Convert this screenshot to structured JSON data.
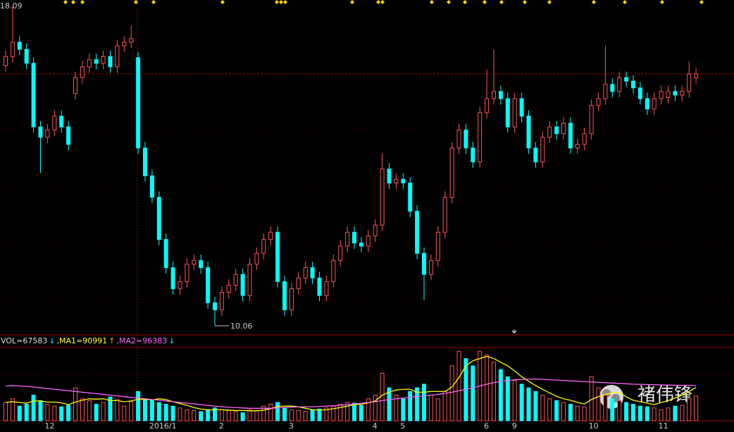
{
  "chart_data": {
    "type": "candlestick",
    "categories": [
      null,
      null,
      null,
      null,
      null,
      null,
      "12",
      null,
      null,
      null,
      null,
      null,
      null,
      null,
      null,
      null,
      null,
      null,
      null,
      null,
      null,
      "2016/1",
      null,
      null,
      null,
      null,
      null,
      null,
      null,
      null,
      null,
      "2",
      null,
      null,
      null,
      null,
      null,
      null,
      null,
      null,
      null,
      "3",
      null,
      null,
      null,
      null,
      null,
      null,
      null,
      null,
      null,
      null,
      null,
      "4",
      null,
      null,
      null,
      "5",
      null,
      null,
      null,
      null,
      null,
      null,
      null,
      null,
      null,
      null,
      null,
      "6",
      null,
      null,
      null,
      "9",
      null,
      null,
      null,
      null,
      null,
      null,
      null,
      null,
      null,
      null,
      "10",
      null,
      null,
      null,
      null,
      null,
      null,
      null,
      null,
      null,
      "11",
      null,
      null,
      null,
      null,
      null
    ],
    "open": [
      16.6,
      16.83,
      17.19,
      17.01,
      16.66,
      15.06,
      14.8,
      14.98,
      15.33,
      15.06,
      15.9,
      16.3,
      16.57,
      16.75,
      16.66,
      16.83,
      16.57,
      17.1,
      17.19,
      16.8,
      14.53,
      13.83,
      13.29,
      12.23,
      11.52,
      10.99,
      11.17,
      11.61,
      11.7,
      11.52,
      10.64,
      10.46,
      10.9,
      11.08,
      11.35,
      10.82,
      11.61,
      11.88,
      12.23,
      12.41,
      11.17,
      10.46,
      10.99,
      11.26,
      11.52,
      11.26,
      10.82,
      11.17,
      11.7,
      12.06,
      12.41,
      12.14,
      12.06,
      12.32,
      12.59,
      14.0,
      13.65,
      13.74,
      13.65,
      12.94,
      11.88,
      11.35,
      11.7,
      12.41,
      13.29,
      14.53,
      14.98,
      14.53,
      14.18,
      15.42,
      15.77,
      15.95,
      15.77,
      15.06,
      15.77,
      15.33,
      14.53,
      14.18,
      14.8,
      15.06,
      14.89,
      15.15,
      14.53,
      14.62,
      14.89,
      15.6,
      15.77,
      16.13,
      15.95,
      16.3,
      16.21,
      16.04,
      15.77,
      15.51,
      15.77,
      15.8,
      15.95,
      15.86,
      15.95,
      16.3
    ],
    "high": [
      16.98,
      18.09,
      17.34,
      17.16,
      16.81,
      15.21,
      15.13,
      15.48,
      15.48,
      15.21,
      16.45,
      16.72,
      16.9,
      16.9,
      16.98,
      16.98,
      17.25,
      17.34,
      17.6,
      16.95,
      14.68,
      13.98,
      13.44,
      12.38,
      11.67,
      11.32,
      11.76,
      11.85,
      11.85,
      11.67,
      10.79,
      11.05,
      11.23,
      11.5,
      11.5,
      11.76,
      12.03,
      12.38,
      12.56,
      12.56,
      11.32,
      11.14,
      11.41,
      11.67,
      11.67,
      11.41,
      11.32,
      11.85,
      12.21,
      12.56,
      12.56,
      12.29,
      12.47,
      12.74,
      14.4,
      14.15,
      13.89,
      13.89,
      13.8,
      13.09,
      12.03,
      11.85,
      12.56,
      13.44,
      14.68,
      15.13,
      15.13,
      14.68,
      15.57,
      16.5,
      17.0,
      16.1,
      15.92,
      15.92,
      15.92,
      15.48,
      14.68,
      14.95,
      15.21,
      15.21,
      15.3,
      15.3,
      14.77,
      15.04,
      15.75,
      15.92,
      17.1,
      16.28,
      16.45,
      16.45,
      16.36,
      16.19,
      15.92,
      15.92,
      16.1,
      16.1,
      16.1,
      16.1,
      16.7,
      16.54
    ],
    "low": [
      16.45,
      16.68,
      16.86,
      16.51,
      14.91,
      13.9,
      14.65,
      14.83,
      14.91,
      14.47,
      15.75,
      16.15,
      16.42,
      16.51,
      16.51,
      16.42,
      16.42,
      16.95,
      17.04,
      14.38,
      13.68,
      13.14,
      12.08,
      11.37,
      10.84,
      10.84,
      11.02,
      11.46,
      11.37,
      10.49,
      10.06,
      10.31,
      10.75,
      10.93,
      10.67,
      10.67,
      11.46,
      11.73,
      12.08,
      11.02,
      10.31,
      10.31,
      10.84,
      11.11,
      11.11,
      10.67,
      10.67,
      11.02,
      11.55,
      11.91,
      11.99,
      11.91,
      11.91,
      12.17,
      12.44,
      13.5,
      13.5,
      13.5,
      12.79,
      11.73,
      10.7,
      11.2,
      11.55,
      12.26,
      13.14,
      14.38,
      14.38,
      14.03,
      14.03,
      15.27,
      15.62,
      15.62,
      14.91,
      14.91,
      15.18,
      14.38,
      14.03,
      14.03,
      14.65,
      14.74,
      14.74,
      14.38,
      14.38,
      14.47,
      14.74,
      15.45,
      15.62,
      15.8,
      15.8,
      16.06,
      15.89,
      15.62,
      15.36,
      15.36,
      15.62,
      15.65,
      15.71,
      15.71,
      15.8,
      16.15
    ],
    "close": [
      16.83,
      17.19,
      17.01,
      16.66,
      15.06,
      14.8,
      14.98,
      15.33,
      15.06,
      14.62,
      16.3,
      16.57,
      16.75,
      16.66,
      16.83,
      16.57,
      17.1,
      17.19,
      17.28,
      14.53,
      13.83,
      13.29,
      12.23,
      11.52,
      10.99,
      11.17,
      11.61,
      11.7,
      11.52,
      10.64,
      10.46,
      10.9,
      11.08,
      11.35,
      10.82,
      11.61,
      11.88,
      12.23,
      12.41,
      11.17,
      10.46,
      10.99,
      11.26,
      11.52,
      11.26,
      10.82,
      11.17,
      11.7,
      12.06,
      12.41,
      12.14,
      12.06,
      12.32,
      12.59,
      14.0,
      13.65,
      13.74,
      13.65,
      12.94,
      11.88,
      11.35,
      11.7,
      12.41,
      13.29,
      14.53,
      14.98,
      14.53,
      14.18,
      15.42,
      15.77,
      15.95,
      15.77,
      15.06,
      15.77,
      15.33,
      14.53,
      14.18,
      14.8,
      15.06,
      14.89,
      15.15,
      14.53,
      14.62,
      14.89,
      15.6,
      15.77,
      16.13,
      15.95,
      16.3,
      16.21,
      16.04,
      15.77,
      15.51,
      15.77,
      15.95,
      15.95,
      15.86,
      15.95,
      16.39,
      16.39
    ],
    "ylim": [
      9.9,
      18.25
    ],
    "up_color": "#ff5555",
    "down_color": "#00ffff",
    "volume": {
      "ylim": [
        0,
        200000
      ],
      "values": [
        50000,
        60000,
        40000,
        45000,
        70000,
        55000,
        45000,
        40000,
        38000,
        42000,
        90000,
        60000,
        55000,
        45000,
        50000,
        65000,
        58000,
        40000,
        52000,
        80000,
        60000,
        55000,
        50000,
        45000,
        40000,
        35000,
        30000,
        28000,
        25000,
        30000,
        35000,
        30000,
        28000,
        25000,
        22000,
        30000,
        28000,
        40000,
        45000,
        50000,
        35000,
        30000,
        28000,
        26000,
        30000,
        32000,
        35000,
        40000,
        45000,
        50000,
        48000,
        42000,
        60000,
        70000,
        130000,
        90000,
        70000,
        60000,
        80000,
        90000,
        100000,
        70000,
        60000,
        80000,
        150000,
        190000,
        170000,
        150000,
        190000,
        180000,
        160000,
        140000,
        120000,
        110000,
        100000,
        90000,
        80000,
        70000,
        60000,
        55000,
        50000,
        45000,
        40000,
        38000,
        120000,
        90000,
        70000,
        60000,
        55000,
        50000,
        45000,
        40000,
        38000,
        35000,
        30000,
        35000,
        40000,
        42000,
        60000,
        67583
      ],
      "series": [
        {
          "name": "MA1",
          "color": "#ffff00",
          "values": [
            50000,
            52000,
            50000,
            48000,
            54000,
            54000,
            51000,
            51000,
            49000,
            44000,
            51000,
            56000,
            60000,
            59000,
            60000,
            55000,
            55000,
            52000,
            54000,
            59000,
            58000,
            57000,
            60000,
            58000,
            52000,
            47000,
            42000,
            36000,
            32000,
            30000,
            30000,
            30000,
            29000,
            28000,
            28000,
            27000,
            27000,
            29000,
            33000,
            39000,
            40000,
            40000,
            38000,
            34000,
            30000,
            29000,
            30000,
            33000,
            36000,
            40000,
            44000,
            45000,
            49000,
            54000,
            70000,
            78000,
            84000,
            86000,
            86000,
            78000,
            78000,
            80000,
            80000,
            80000,
            92000,
            118000,
            150000,
            164000,
            170000,
            176000,
            170000,
            160000,
            150000,
            136000,
            120000,
            108000,
            96000,
            86000,
            76000,
            67000,
            60000,
            56000,
            50000,
            46000,
            58000,
            66000,
            72000,
            76000,
            78000,
            65000,
            56000,
            52000,
            48000,
            44000,
            50000,
            55000,
            62000,
            70000,
            80000,
            90991
          ]
        },
        {
          "name": "MA2",
          "color": "#ff66ff",
          "values": [
            95000,
            96000,
            95000,
            94000,
            92000,
            90000,
            88000,
            86000,
            84000,
            82000,
            80000,
            78000,
            76000,
            74000,
            72000,
            70000,
            68000,
            66000,
            64000,
            62000,
            60000,
            58000,
            56000,
            54000,
            52000,
            50000,
            48000,
            46000,
            44000,
            42000,
            40000,
            38000,
            37000,
            36000,
            35000,
            34000,
            34000,
            34000,
            34000,
            35000,
            36000,
            37000,
            38000,
            38000,
            38000,
            39000,
            40000,
            41000,
            42000,
            44000,
            46000,
            48000,
            50000,
            52000,
            55000,
            58000,
            60000,
            62000,
            64000,
            66000,
            68000,
            70000,
            72000,
            75000,
            78000,
            82000,
            86000,
            90000,
            95000,
            100000,
            104000,
            108000,
            110000,
            112000,
            113000,
            114000,
            114000,
            113000,
            112000,
            111000,
            110000,
            109000,
            108000,
            107000,
            106000,
            105000,
            104000,
            103000,
            102000,
            101000,
            100000,
            99500,
            99000,
            98500,
            98000,
            97500,
            97000,
            96800,
            96600,
            96383
          ]
        }
      ],
      "legend": [
        "VOL=67583",
        "↓",
        ",MA1=90991",
        "↑",
        ",MA2=96383",
        "↓"
      ]
    },
    "watermark": "褚伟锋"
  }
}
